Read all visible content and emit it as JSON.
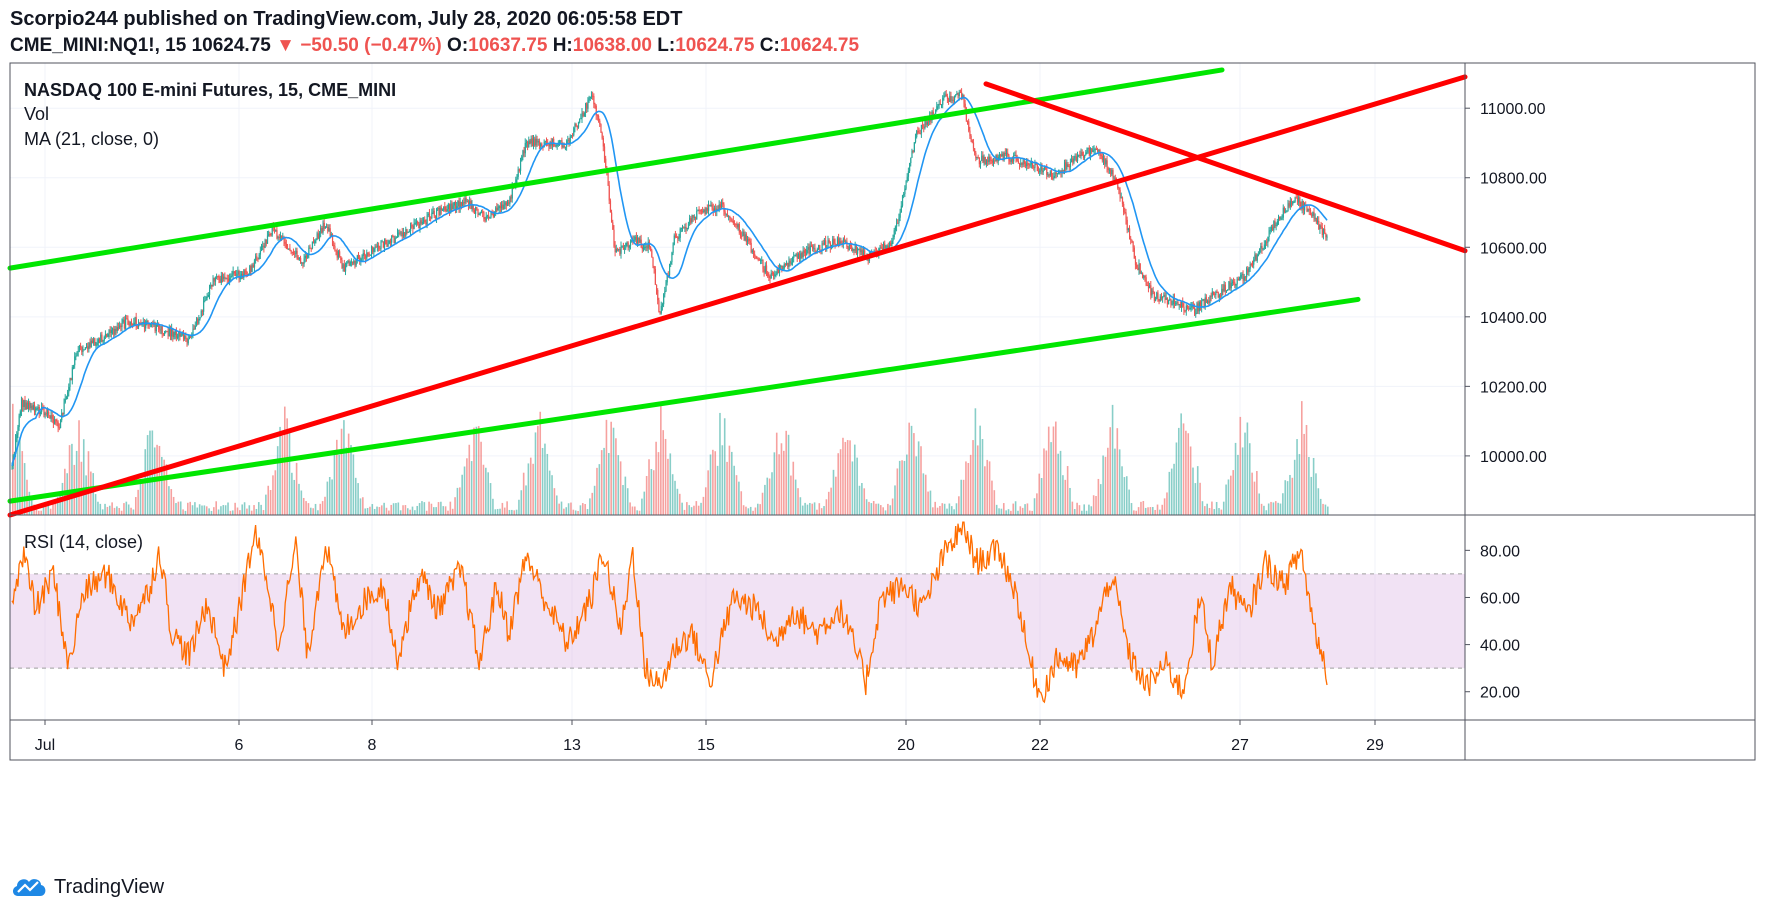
{
  "header": {
    "publisher_line": "Scorpio244 published on TradingView.com, July 28, 2020 06:05:58 EDT",
    "symbol": "CME_MINI:NQ1!, 15",
    "last": "10624.75",
    "change": "▼ −50.50 (−0.47%)",
    "o_label": "O:",
    "o_value": "10637.75",
    "h_label": "H:",
    "h_value": "10638.00",
    "l_label": "L:",
    "l_value": "10624.75",
    "c_label": "C:",
    "c_value": "10624.75"
  },
  "legend": {
    "title": "NASDAQ 100 E-mini Futures, 15, CME_MINI",
    "vol": "Vol",
    "ma": "MA (21, close, 0)",
    "rsi": "RSI (14, close)"
  },
  "colors": {
    "up": "#26a69a",
    "down": "#ef5350",
    "ma": "#2196f3",
    "rsi": "#ff6d00",
    "rsi_band": "#e1bee7",
    "green_line": "#00e600",
    "red_line": "#ff0000"
  },
  "footer": {
    "brand": "TradingView",
    "logo_icon": "tradingview-cloud-icon"
  },
  "chart_data": [
    {
      "type": "candlestick",
      "title": "NASDAQ 100 E-mini Futures, 15, CME_MINI",
      "x_ticks": [
        "Jul",
        "6",
        "8",
        "13",
        "15",
        "20",
        "22",
        "27",
        "29"
      ],
      "y_ticks": [
        "10000.00",
        "10200.00",
        "10400.00",
        "10600.00",
        "10800.00",
        "11000.00"
      ],
      "ylim": [
        9830,
        11130
      ],
      "last_price": 10624.75,
      "price_path": [
        [
          0,
          9970
        ],
        [
          8,
          10150
        ],
        [
          25,
          10130
        ],
        [
          40,
          10090
        ],
        [
          55,
          10300
        ],
        [
          85,
          10360
        ],
        [
          100,
          10390
        ],
        [
          140,
          10350
        ],
        [
          150,
          10330
        ],
        [
          170,
          10500
        ],
        [
          200,
          10530
        ],
        [
          220,
          10650
        ],
        [
          245,
          10560
        ],
        [
          265,
          10670
        ],
        [
          280,
          10540
        ],
        [
          300,
          10580
        ],
        [
          330,
          10640
        ],
        [
          360,
          10700
        ],
        [
          385,
          10730
        ],
        [
          400,
          10680
        ],
        [
          420,
          10730
        ],
        [
          435,
          10900
        ],
        [
          470,
          10900
        ],
        [
          490,
          11040
        ],
        [
          500,
          10900
        ],
        [
          510,
          10580
        ],
        [
          525,
          10620
        ],
        [
          540,
          10600
        ],
        [
          548,
          10400
        ],
        [
          560,
          10620
        ],
        [
          580,
          10700
        ],
        [
          600,
          10720
        ],
        [
          615,
          10650
        ],
        [
          640,
          10520
        ],
        [
          670,
          10590
        ],
        [
          700,
          10620
        ],
        [
          725,
          10570
        ],
        [
          745,
          10620
        ],
        [
          765,
          10930
        ],
        [
          790,
          11030
        ],
        [
          803,
          11040
        ],
        [
          815,
          10850
        ],
        [
          840,
          10860
        ],
        [
          860,
          10840
        ],
        [
          880,
          10810
        ],
        [
          905,
          10870
        ],
        [
          918,
          10880
        ],
        [
          935,
          10780
        ],
        [
          950,
          10560
        ],
        [
          965,
          10460
        ],
        [
          985,
          10440
        ],
        [
          1000,
          10420
        ],
        [
          1015,
          10460
        ],
        [
          1040,
          10510
        ],
        [
          1055,
          10590
        ],
        [
          1070,
          10680
        ],
        [
          1085,
          10740
        ],
        [
          1100,
          10690
        ],
        [
          1112,
          10624.75
        ]
      ],
      "series": [
        {
          "name": "Vol",
          "type": "bar",
          "spike_indices": [
            0,
            55,
            120,
            230,
            280,
            390,
            445,
            505,
            548,
            600,
            650,
            705,
            760,
            815,
            880,
            930,
            990,
            1040,
            1090
          ]
        },
        {
          "name": "MA (21, close, 0)",
          "type": "line",
          "period": 21
        }
      ],
      "trendlines": [
        {
          "color": "green",
          "start": {
            "x": "Jul 1",
            "y": 10540
          },
          "end": {
            "x": "Jul 22 late",
            "y": 11110
          }
        },
        {
          "color": "green",
          "start": {
            "x": "Jul 1",
            "y": 9870
          },
          "end": {
            "x": "Jul 28 late",
            "y": 10450
          }
        },
        {
          "color": "red",
          "start": {
            "x": "Jul 1",
            "y": 9830
          },
          "end": {
            "x": "Jul 29 end",
            "y": 11090
          }
        },
        {
          "color": "red",
          "start": {
            "x": "Jul 21",
            "y": 11070
          },
          "end": {
            "x": "Jul 29 end",
            "y": 10590
          }
        }
      ]
    },
    {
      "type": "line",
      "title": "RSI (14, close)",
      "y_ticks": [
        "20.00",
        "40.00",
        "60.00",
        "80.00"
      ],
      "ylim": [
        8,
        95
      ],
      "band": [
        30,
        70
      ],
      "rsi_path": [
        [
          0,
          62
        ],
        [
          10,
          78
        ],
        [
          20,
          55
        ],
        [
          35,
          70
        ],
        [
          48,
          30
        ],
        [
          60,
          62
        ],
        [
          80,
          70
        ],
        [
          100,
          50
        ],
        [
          115,
          62
        ],
        [
          125,
          80
        ],
        [
          135,
          45
        ],
        [
          150,
          35
        ],
        [
          165,
          58
        ],
        [
          180,
          30
        ],
        [
          190,
          50
        ],
        [
          205,
          87
        ],
        [
          215,
          70
        ],
        [
          225,
          40
        ],
        [
          240,
          82
        ],
        [
          250,
          35
        ],
        [
          265,
          84
        ],
        [
          280,
          45
        ],
        [
          300,
          60
        ],
        [
          315,
          65
        ],
        [
          325,
          33
        ],
        [
          345,
          70
        ],
        [
          360,
          55
        ],
        [
          380,
          72
        ],
        [
          395,
          32
        ],
        [
          410,
          65
        ],
        [
          420,
          45
        ],
        [
          435,
          78
        ],
        [
          450,
          60
        ],
        [
          470,
          40
        ],
        [
          490,
          60
        ],
        [
          500,
          80
        ],
        [
          515,
          45
        ],
        [
          525,
          80
        ],
        [
          535,
          30
        ],
        [
          548,
          22
        ],
        [
          560,
          38
        ],
        [
          575,
          45
        ],
        [
          590,
          24
        ],
        [
          610,
          60
        ],
        [
          630,
          55
        ],
        [
          645,
          40
        ],
        [
          660,
          55
        ],
        [
          680,
          45
        ],
        [
          700,
          55
        ],
        [
          712,
          40
        ],
        [
          722,
          24
        ],
        [
          735,
          60
        ],
        [
          755,
          65
        ],
        [
          770,
          55
        ],
        [
          790,
          80
        ],
        [
          805,
          90
        ],
        [
          815,
          75
        ],
        [
          835,
          80
        ],
        [
          850,
          60
        ],
        [
          860,
          34
        ],
        [
          870,
          18
        ],
        [
          885,
          35
        ],
        [
          900,
          30
        ],
        [
          915,
          45
        ],
        [
          930,
          70
        ],
        [
          945,
          35
        ],
        [
          960,
          22
        ],
        [
          975,
          32
        ],
        [
          990,
          20
        ],
        [
          1005,
          60
        ],
        [
          1015,
          32
        ],
        [
          1030,
          65
        ],
        [
          1045,
          52
        ],
        [
          1060,
          75
        ],
        [
          1075,
          65
        ],
        [
          1090,
          80
        ],
        [
          1100,
          50
        ],
        [
          1112,
          28
        ]
      ]
    }
  ]
}
